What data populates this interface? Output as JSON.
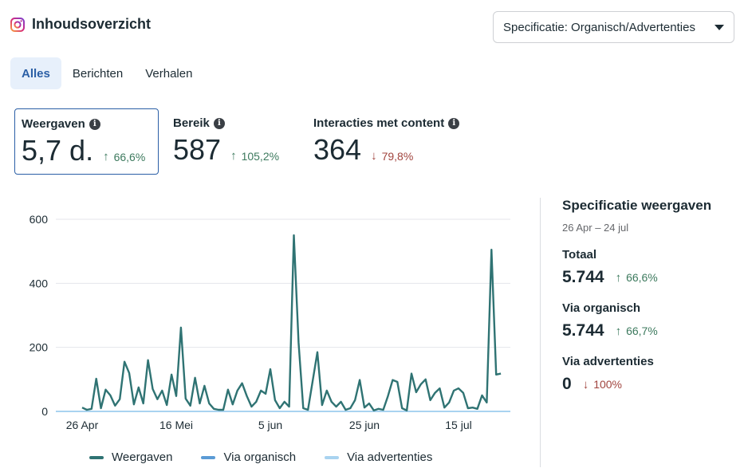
{
  "header": {
    "title": "Inhoudsoverzicht",
    "icon": "instagram-icon"
  },
  "spec_dropdown": {
    "label": "Specificatie: Organisch/Advertenties"
  },
  "tabs": [
    {
      "label": "Alles",
      "active": true
    },
    {
      "label": "Berichten",
      "active": false
    },
    {
      "label": "Verhalen",
      "active": false
    }
  ],
  "metrics": [
    {
      "label": "Weergaven",
      "value": "5,7 d.",
      "delta": "66,6%",
      "direction": "up"
    },
    {
      "label": "Bereik",
      "value": "587",
      "delta": "105,2%",
      "direction": "up"
    },
    {
      "label": "Interacties met content",
      "value": "364",
      "delta": "79,8%",
      "direction": "down"
    }
  ],
  "colors": {
    "accent": "#2b5fa6",
    "up": "#3d7a5e",
    "down": "#a1443e",
    "series_weergaven": "#2f7373",
    "series_organisch": "#5b9bd5",
    "series_advertenties": "#a9d3f0"
  },
  "chart_data": {
    "type": "line",
    "title": "",
    "xlabel": "",
    "ylabel": "",
    "ylim": [
      0,
      600
    ],
    "yticks": [
      "0",
      "200",
      "400",
      "600"
    ],
    "xticks": [
      {
        "label": "26 Apr",
        "index": 0
      },
      {
        "label": "16 Mei",
        "index": 20
      },
      {
        "label": "5 jun",
        "index": 40
      },
      {
        "label": "25 jun",
        "index": 60
      },
      {
        "label": "15 jul",
        "index": 80
      }
    ],
    "grid": true,
    "legend_position": "bottom",
    "series": [
      {
        "name": "Weergaven",
        "values": [
          12,
          5,
          8,
          102,
          10,
          68,
          50,
          18,
          38,
          155,
          120,
          22,
          75,
          25,
          160,
          70,
          38,
          65,
          20,
          115,
          48,
          262,
          40,
          18,
          105,
          25,
          80,
          25,
          8,
          5,
          5,
          68,
          22,
          65,
          88,
          48,
          15,
          30,
          65,
          55,
          132,
          35,
          10,
          30,
          15,
          550,
          215,
          10,
          5,
          95,
          185,
          20,
          65,
          30,
          15,
          30,
          5,
          10,
          35,
          98,
          12,
          25,
          3,
          8,
          5,
          48,
          98,
          92,
          10,
          3,
          118,
          60,
          85,
          100,
          35,
          58,
          72,
          12,
          28,
          65,
          72,
          58,
          10,
          12,
          8,
          50,
          28,
          505,
          115,
          118
        ]
      },
      {
        "name": "Via organisch",
        "values": []
      },
      {
        "name": "Via advertenties",
        "values": []
      }
    ]
  },
  "side": {
    "title": "Specificatie weergaven",
    "range": "26 Apr – 24 jul",
    "blocks": [
      {
        "label": "Totaal",
        "value": "5.744",
        "delta": "66,6%",
        "direction": "up"
      },
      {
        "label": "Via organisch",
        "value": "5.744",
        "delta": "66,7%",
        "direction": "up"
      },
      {
        "label": "Via advertenties",
        "value": "0",
        "delta": "100%",
        "direction": "down"
      }
    ]
  }
}
